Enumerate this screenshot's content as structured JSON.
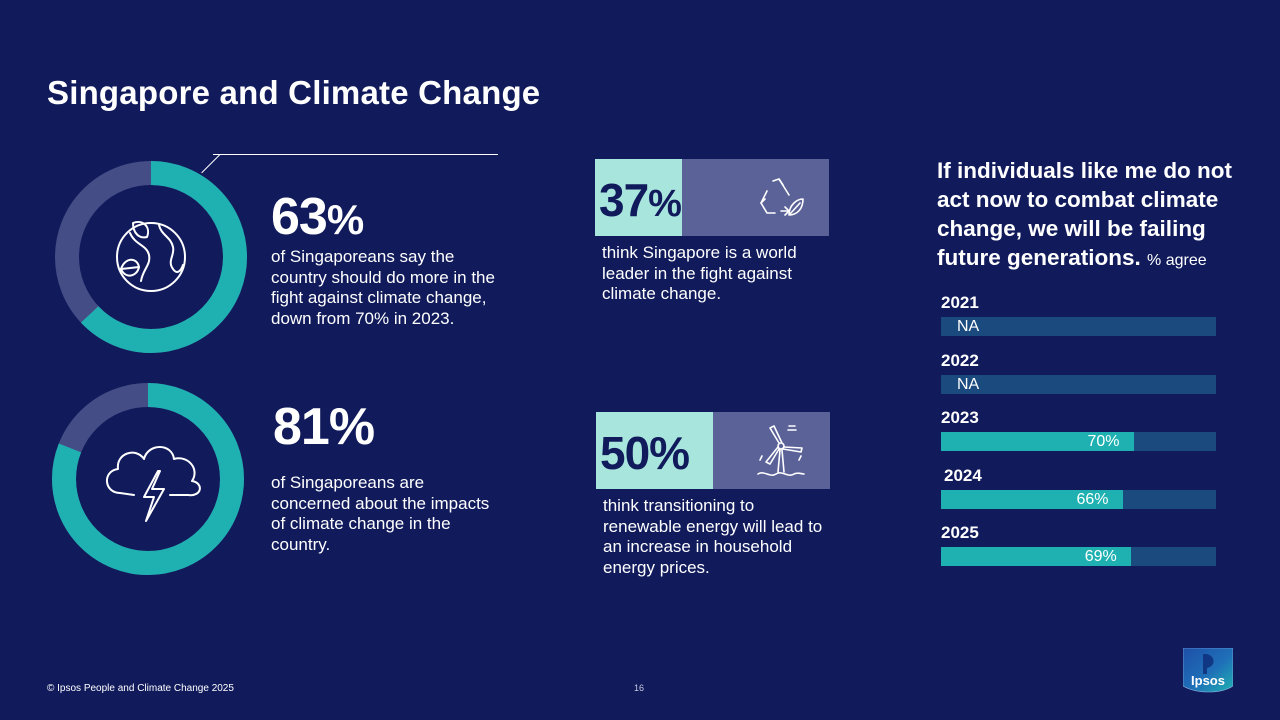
{
  "title": "Singapore and Climate Change",
  "stats": [
    {
      "value": 63,
      "number": "63",
      "symbol": "%",
      "text": "of Singaporeans say the country should do more in the fight against climate change, down from 70% in 2023.",
      "icon": "globe-leaf-icon"
    },
    {
      "value": 81,
      "number": "81%",
      "symbol": "",
      "text": "of Singaporeans are concerned about the impacts of climate change in the country.",
      "icon": "storm-cloud-icon"
    }
  ],
  "boxes": [
    {
      "value": 37,
      "number": "37",
      "symbol": "%",
      "text": "think Singapore is a world leader in the fight against climate change.",
      "icon": "recycle-leaf-icon"
    },
    {
      "value": 50,
      "number": "50%",
      "symbol": "",
      "text": "think transitioning to renewable energy will lead to an increase in household energy prices.",
      "icon": "wind-turbine-icon"
    }
  ],
  "quote": {
    "statement": "If individuals like me do not act now to combat climate change, we will be failing future generations.",
    "suffix": "% agree"
  },
  "chart_data": {
    "type": "bar",
    "orientation": "horizontal",
    "categories": [
      "2021",
      "2022",
      "2023",
      "2024",
      "2025"
    ],
    "values": [
      null,
      null,
      70,
      66,
      69
    ],
    "labels": [
      "NA",
      "NA",
      "70%",
      "66%",
      "69%"
    ],
    "xlim": [
      0,
      100
    ]
  },
  "colors": {
    "background": "#111b5c",
    "teal": "#1fb1b1",
    "donut_remainder": "#454d86",
    "light_teal": "#a8e6dd",
    "box_dark": "#5a6298",
    "bar_track": "#1a4a7e"
  },
  "footer": "© Ipsos People and Climate Change 2025",
  "page_number": "16",
  "logo": "Ipsos"
}
